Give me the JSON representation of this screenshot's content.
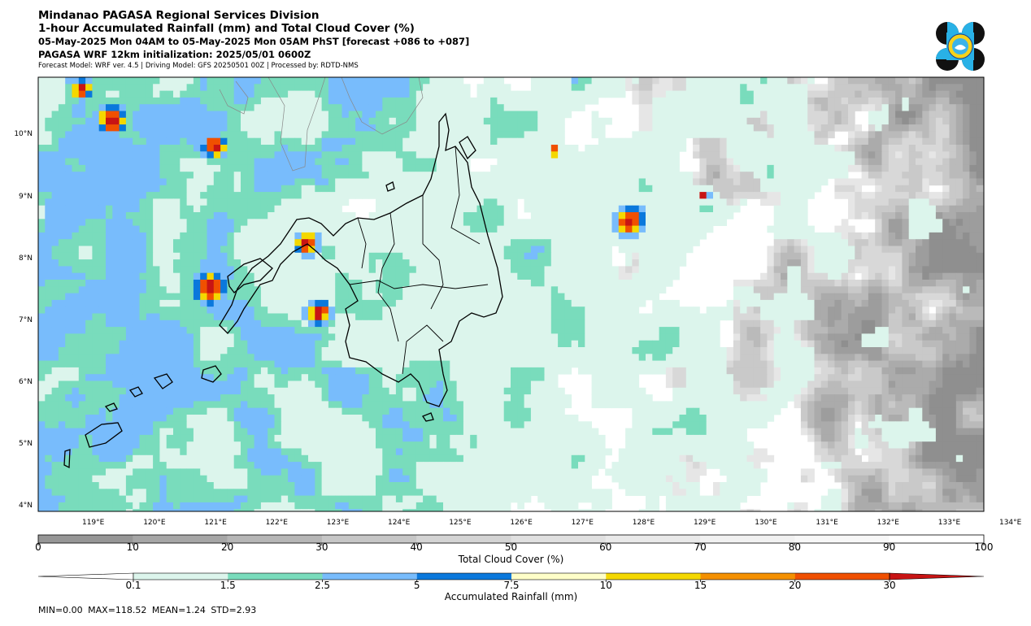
{
  "header": {
    "title": "Mindanao PAGASA Regional Services Division",
    "subtitle": "1-hour Accumulated Rainfall (mm) and Total Cloud Cover (%)",
    "valid_period": "05-May-2025 Mon 04AM to 05-May-2025 Mon 05AM PhST [forecast +086 to +087]",
    "initialization": "PAGASA WRF 12km initialization: 2025/05/01 0600Z",
    "model_info": "Forecast Model: WRF ver. 4.5 | Driving Model: GFS 20250501 00Z | Processed by: RDTD-NMS"
  },
  "map": {
    "lat_labels": [
      "10°N",
      "9°N",
      "8°N",
      "7°N",
      "6°N",
      "5°N",
      "4°N"
    ],
    "lon_labels": [
      "119°E",
      "120°E",
      "121°E",
      "122°E",
      "123°E",
      "124°E",
      "125°E",
      "126°E",
      "127°E",
      "128°E",
      "129°E",
      "130°E",
      "131°E",
      "132°E",
      "133°E",
      "134°E"
    ]
  },
  "cloud_colorbar": {
    "label": "Total Cloud Cover (%)",
    "ticks": [
      "0",
      "10",
      "20",
      "30",
      "40",
      "50",
      "60",
      "70",
      "80",
      "90",
      "100"
    ],
    "colors": [
      "#969696",
      "#a6a6a6",
      "#b6b6b6",
      "#c6c6c6",
      "#d4d4d4",
      "#e0e0e0",
      "#e9e9e9",
      "#f1f1f1",
      "#f7f7f7",
      "#ffffff"
    ]
  },
  "rain_colorbar": {
    "label": "Accumulated Rainfall (mm)",
    "ticks": [
      "0.1",
      "1.5",
      "2.5",
      "5",
      "7.5",
      "10",
      "15",
      "20",
      "30"
    ],
    "colors": [
      "#ffffff",
      "#dcf5ec",
      "#79dcbc",
      "#78bcfc",
      "#0a78dc",
      "#fefec8",
      "#f4d800",
      "#f49000",
      "#f05000",
      "#c81414"
    ]
  },
  "stats": "MIN=0.00   MAX=118.52   MEAN=1.24   STD=2.93"
}
